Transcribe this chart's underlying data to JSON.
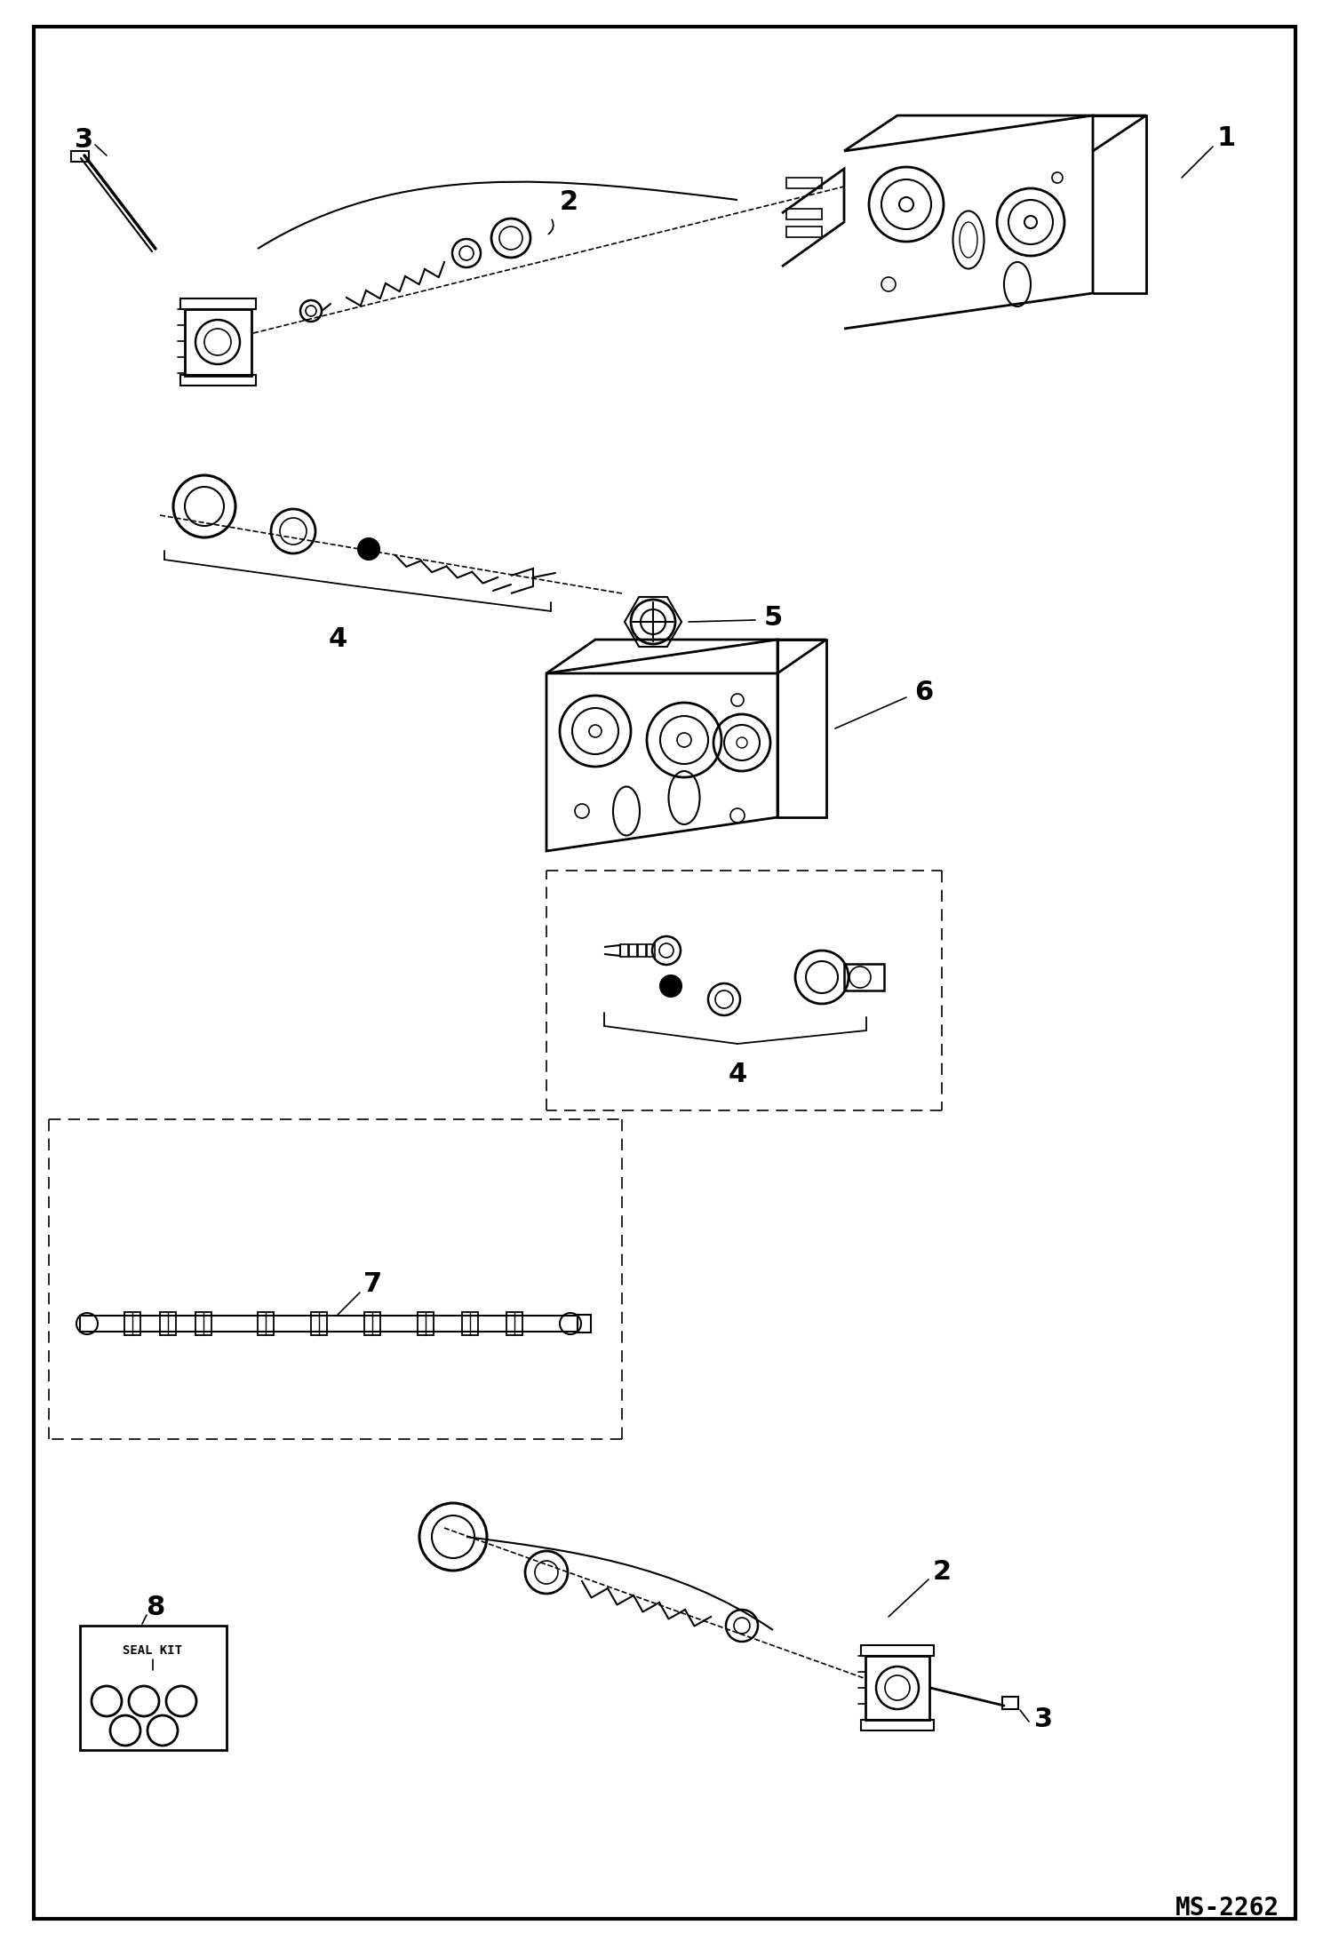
{
  "bg_color": "#ffffff",
  "line_color": "#000000",
  "text_color": "#000000",
  "watermark": "MS-2262",
  "figure_width": 14.98,
  "figure_height": 21.94,
  "dpi": 100
}
